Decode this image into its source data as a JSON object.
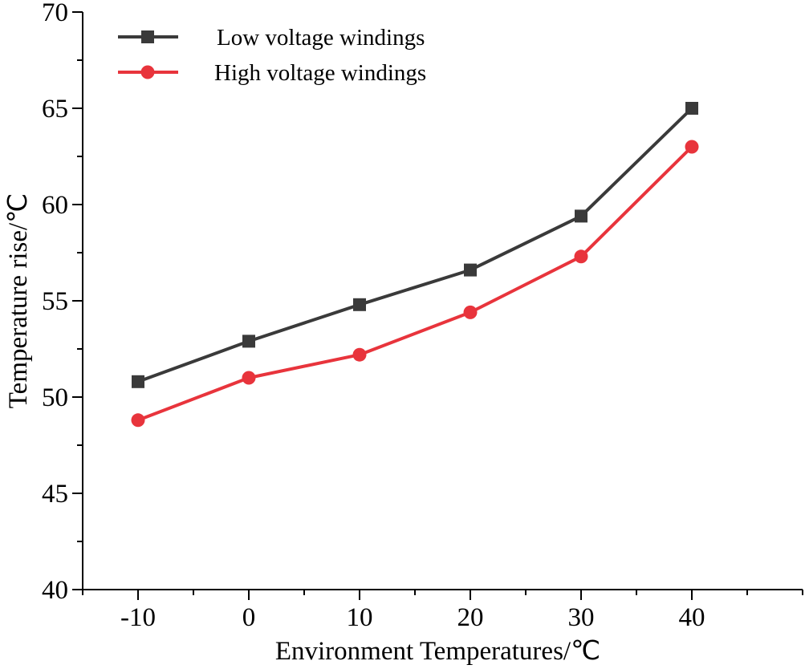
{
  "chart_data": {
    "type": "line",
    "title": "",
    "xlabel": "Environment Temperatures/℃",
    "ylabel": "Temperature rise/℃",
    "x": [
      -10,
      0,
      10,
      20,
      30,
      40
    ],
    "x_tick_labels": [
      "-10",
      "0",
      "10",
      "20",
      "30",
      "40"
    ],
    "xlim": [
      -15,
      50
    ],
    "ylim": [
      40,
      70
    ],
    "y_ticks": [
      40,
      45,
      50,
      55,
      60,
      65,
      70
    ],
    "y_tick_labels": [
      "40",
      "45",
      "50",
      "55",
      "60",
      "65",
      "70"
    ],
    "grid": false,
    "legend_position": "top-left",
    "series": [
      {
        "name": "Low voltage windings",
        "marker": "square",
        "color": "#3a3a3a",
        "values": [
          50.8,
          52.9,
          54.8,
          56.6,
          59.4,
          65.0
        ]
      },
      {
        "name": "High voltage windings",
        "marker": "circle",
        "color": "#e8343c",
        "values": [
          48.8,
          51.0,
          52.2,
          54.4,
          57.3,
          63.0
        ]
      }
    ]
  }
}
